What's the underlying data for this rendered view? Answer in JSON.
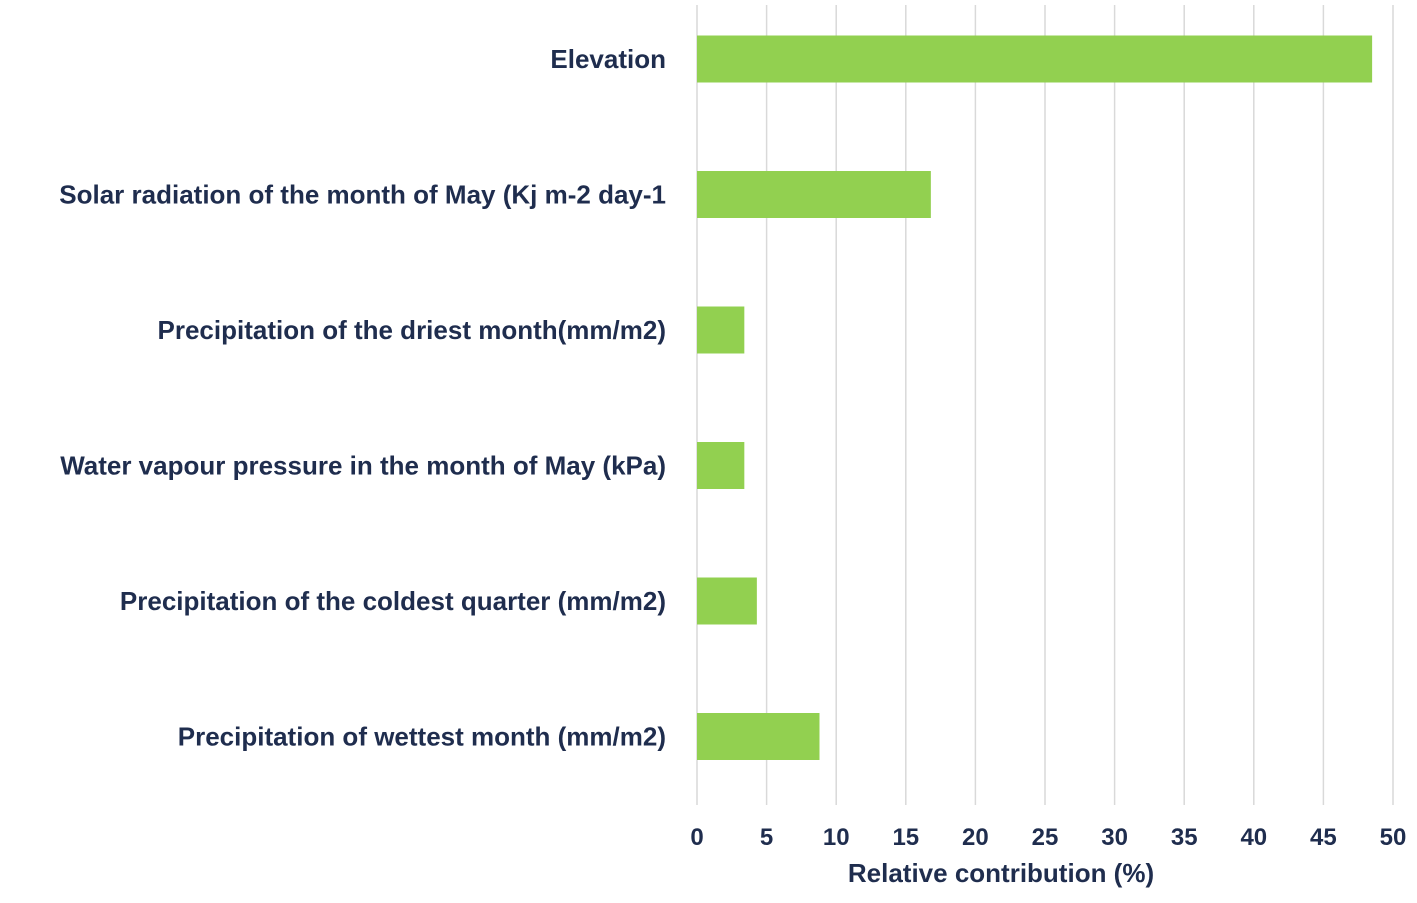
{
  "colors": {
    "bar": "#92d050",
    "text": "#1f2d4e",
    "grid": "#d9d9d9",
    "background": "#ffffff"
  },
  "chart_data": {
    "type": "bar",
    "orientation": "horizontal",
    "title": "",
    "xlabel": "Relative contribution (%)",
    "ylabel": "",
    "xlim": [
      0,
      50
    ],
    "x_ticks": [
      "0",
      "5",
      "10",
      "15",
      "20",
      "25",
      "30",
      "35",
      "40",
      "45",
      "50"
    ],
    "grid": "vertical",
    "legend": "none",
    "categories": [
      "Elevation",
      "Solar radiation of the month of May (Kj m-2 day-1",
      "Precipitation of the driest month(mm/m2)",
      "Water vapour pressure in the month of May (kPa)",
      "Precipitation of the coldest quarter (mm/m2)",
      "Precipitation of wettest month (mm/m2)"
    ],
    "values": [
      48.5,
      16.8,
      3.4,
      3.4,
      4.3,
      8.8
    ]
  }
}
